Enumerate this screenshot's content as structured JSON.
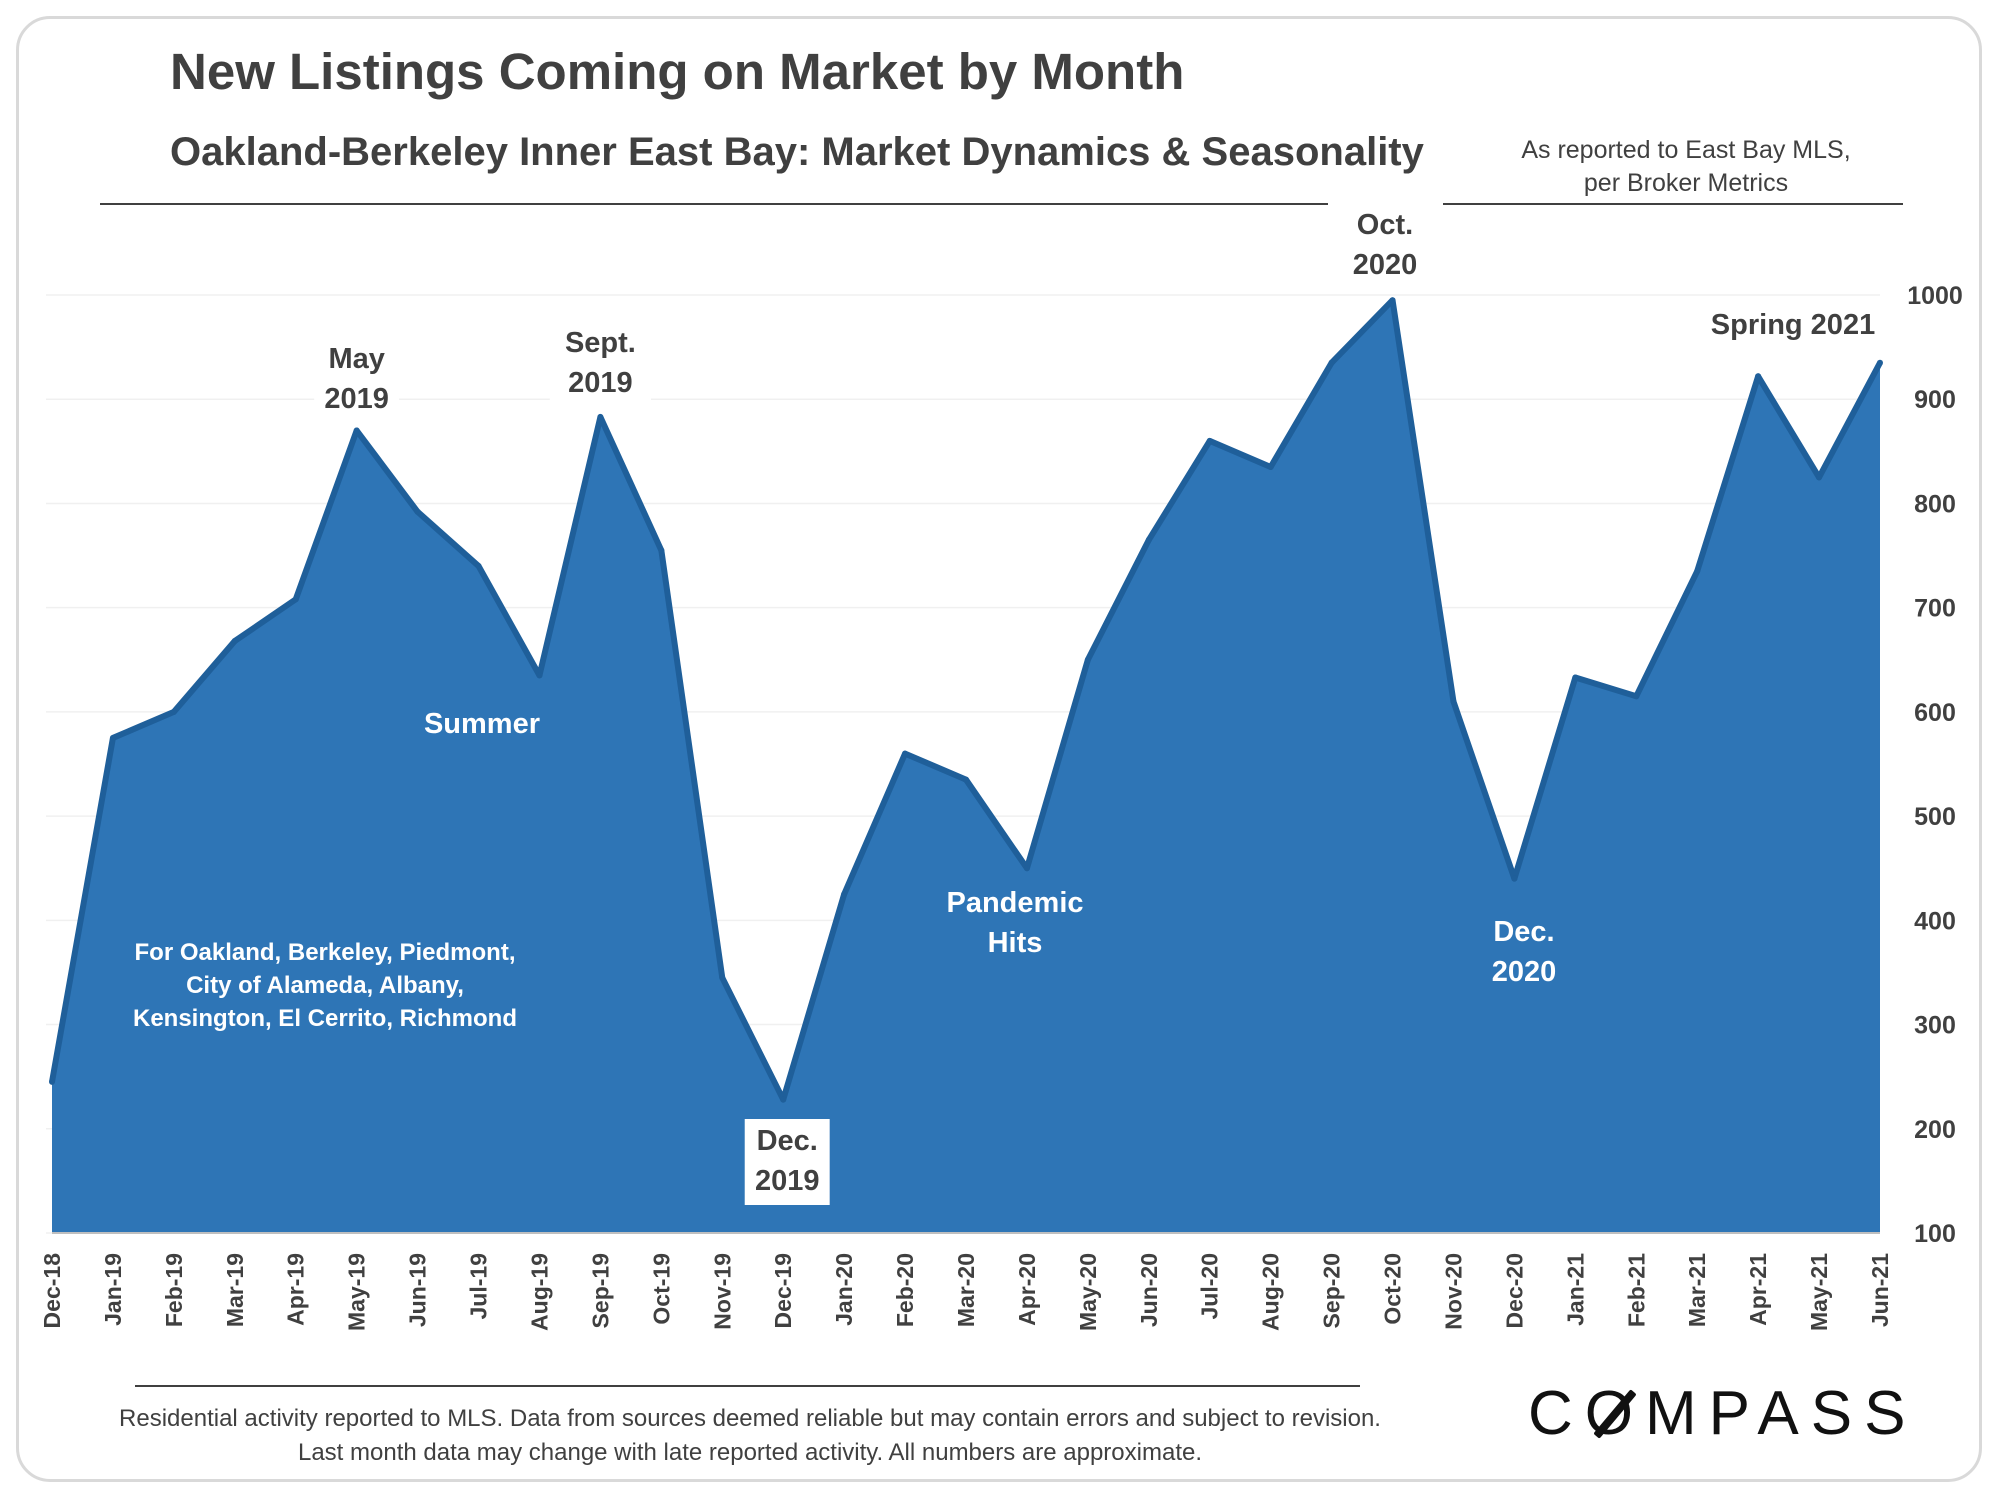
{
  "title": "New Listings Coming on Market by Month",
  "subtitle": "Oakland-Berkeley Inner East Bay: Market Dynamics & Seasonality",
  "source_note": "As reported to East Bay MLS, per Broker Metrics",
  "footnote": "Residential activity reported to MLS. Data from sources deemed reliable but may contain errors and subject to revision. Last month data may change with late reported activity. All numbers are approximate.",
  "logo": {
    "text": "COMPASS",
    "prefix": "C",
    "suffix": "MPASS"
  },
  "colors": {
    "area_fill": "#2e75b6",
    "area_stroke": "#1f5f9a",
    "text": "#404040",
    "annotation_inside": "#ffffff"
  },
  "chart_data": {
    "type": "area",
    "x": [
      "Dec-18",
      "Jan-19",
      "Feb-19",
      "Mar-19",
      "Apr-19",
      "May-19",
      "Jun-19",
      "Jul-19",
      "Aug-19",
      "Sep-19",
      "Oct-19",
      "Nov-19",
      "Dec-19",
      "Jan-20",
      "Feb-20",
      "Mar-20",
      "Apr-20",
      "May-20",
      "Jun-20",
      "Jul-20",
      "Aug-20",
      "Sep-20",
      "Oct-20",
      "Nov-20",
      "Dec-20",
      "Jan-21",
      "Feb-21",
      "Mar-21",
      "Apr-21",
      "May-21",
      "Jun-21"
    ],
    "series": [
      {
        "values": [
          245,
          575,
          600,
          668,
          708,
          870,
          792,
          740,
          635,
          883,
          755,
          345,
          228,
          425,
          560,
          535,
          450,
          650,
          765,
          860,
          835,
          935,
          995,
          610,
          440,
          633,
          615,
          735,
          922,
          825,
          935
        ]
      }
    ],
    "ylim": [
      100,
      1000
    ],
    "yticks": [
      100,
      200,
      300,
      400,
      500,
      600,
      700,
      800,
      900,
      1000
    ],
    "y_axis_side": "right",
    "grid": true,
    "annotations": [
      {
        "text": "May 2019",
        "lines": [
          "May",
          "2019"
        ],
        "at": "May-19",
        "color": "dark"
      },
      {
        "text": "Sept. 2019",
        "lines": [
          "Sept.",
          "2019"
        ],
        "at": "Sep-19",
        "color": "dark"
      },
      {
        "text": "Summer",
        "lines": [
          "Summer"
        ],
        "at": "Jul-19",
        "color": "light"
      },
      {
        "text": "Dec. 2019",
        "lines": [
          "Dec.",
          "2019"
        ],
        "at": "Dec-19",
        "color": "dark"
      },
      {
        "text": "Pandemic Hits",
        "lines": [
          "Pandemic",
          "Hits"
        ],
        "at": "Apr-20",
        "color": "light"
      },
      {
        "text": "Oct. 2020",
        "lines": [
          "Oct.",
          "2020"
        ],
        "at": "Oct-20",
        "color": "dark"
      },
      {
        "text": "Dec. 2020",
        "lines": [
          "Dec.",
          "2020"
        ],
        "at": "Dec-20",
        "color": "light"
      },
      {
        "text": "Spring 2021",
        "lines": [
          "Spring 2021"
        ],
        "at": "Apr-21",
        "color": "dark"
      },
      {
        "text": "For Oakland, Berkeley, Piedmont, City of Alameda, Albany, Kensington, El Cerrito, Richmond",
        "lines": [
          "For Oakland, Berkeley, Piedmont,",
          "City of Alameda, Albany,",
          "Kensington, El Cerrito, Richmond"
        ],
        "at": "Apr-19",
        "color": "light"
      }
    ]
  }
}
